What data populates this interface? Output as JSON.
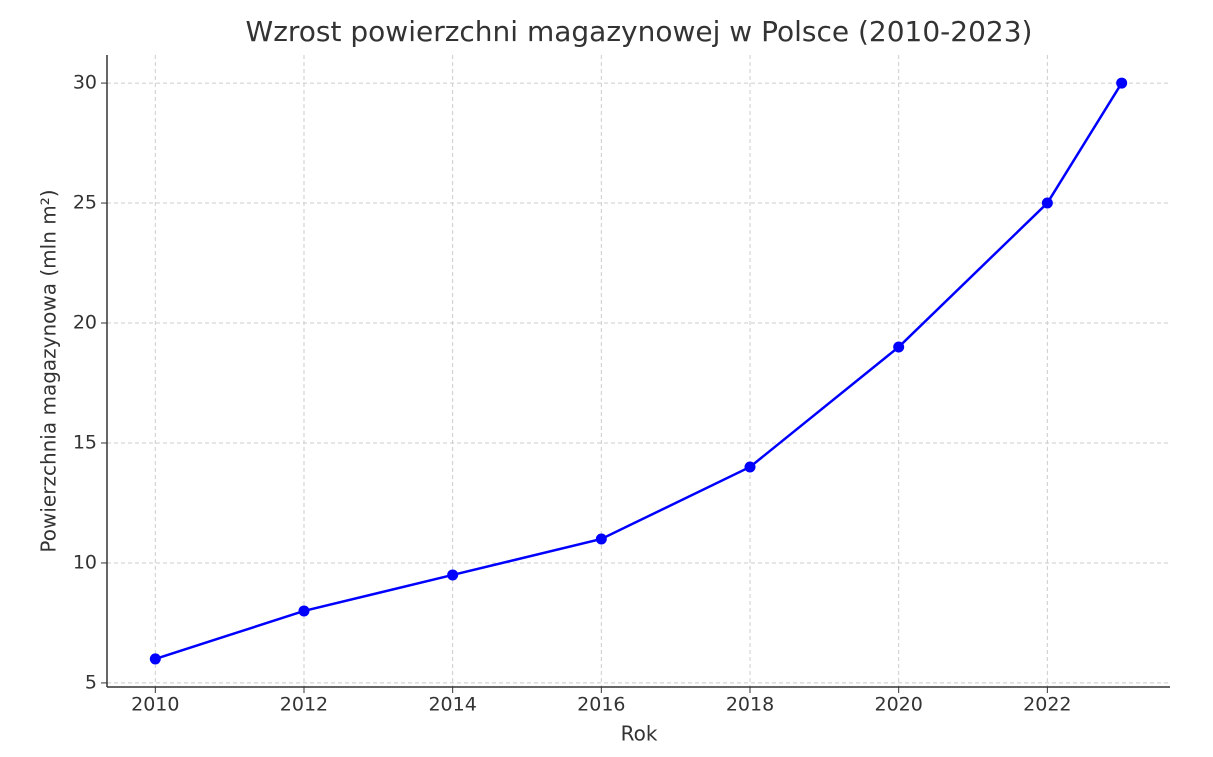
{
  "chart_data": {
    "type": "line",
    "title": "Wzrost powierzchni magazynowej w Polsce (2010-2023)",
    "x_label": "Rok",
    "y_label": "Powierzchnia magazynowa (mln m²)",
    "x": [
      2010,
      2012,
      2014,
      2016,
      2018,
      2020,
      2022,
      2023
    ],
    "series": [
      {
        "name": "Powierzchnia magazynowa",
        "color": "#0000ff",
        "values": [
          6,
          8,
          9.5,
          11,
          14,
          19,
          25,
          30
        ]
      }
    ],
    "xlim": [
      2009.35,
      2023.65
    ],
    "xticks": [
      2010,
      2012,
      2014,
      2016,
      2018,
      2020,
      2022
    ],
    "ylim": [
      4.83,
      31.17
    ],
    "yticks": [
      5,
      10,
      15,
      20,
      25,
      30
    ],
    "grid": true
  }
}
